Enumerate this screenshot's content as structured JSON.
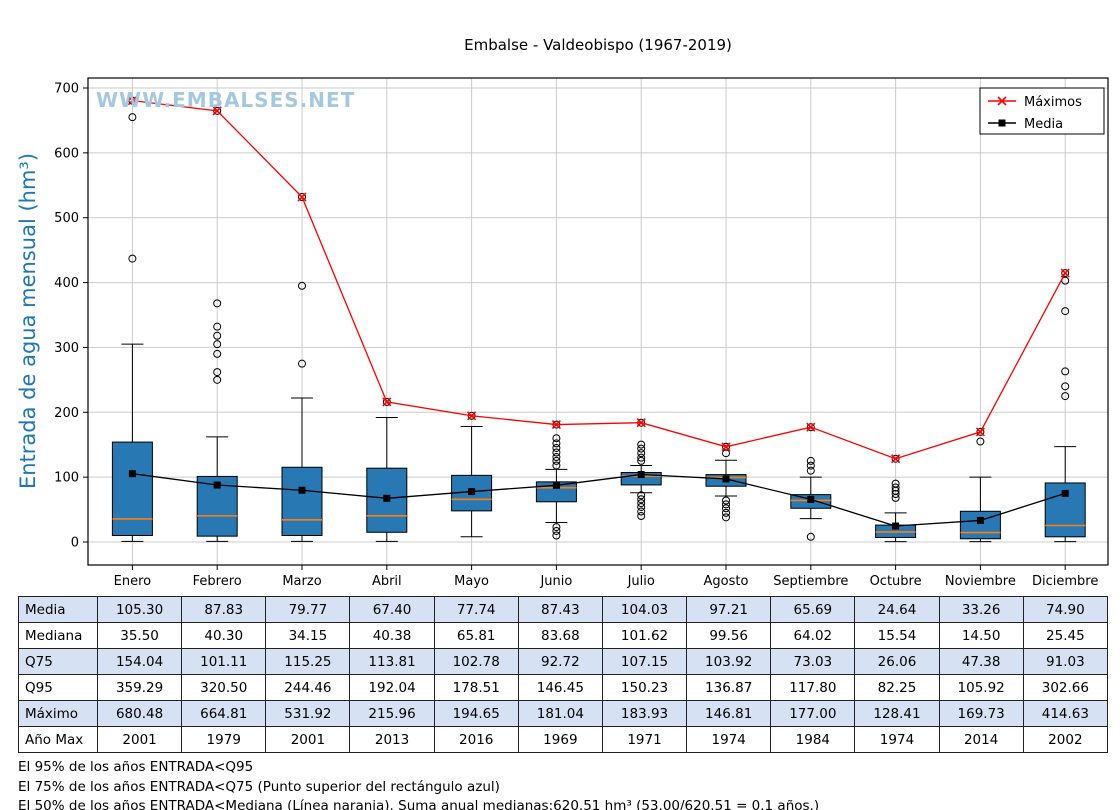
{
  "title": "Embalse - Valdeobispo (1967-2019)",
  "watermark": "WWW.EMBALSES.NET",
  "ylabel": "Entrada de agua mensual (hm³)",
  "colors": {
    "box": "#2878b4",
    "median": "#ff7f0e",
    "max_line": "#ff0000",
    "media_line": "#000000",
    "grid": "#cccccc",
    "axis_label": "#1f77b4",
    "watermark": "#a5c8e1",
    "table_shade": "#d6e2f3"
  },
  "chart_data": {
    "type": "boxplot+lines",
    "categories": [
      "Enero",
      "Febrero",
      "Marzo",
      "Abril",
      "Mayo",
      "Junio",
      "Julio",
      "Agosto",
      "Septiembre",
      "Octubre",
      "Noviembre",
      "Diciembre"
    ],
    "ylim": [
      0,
      700
    ],
    "yticks": [
      0,
      100,
      200,
      300,
      400,
      500,
      600,
      700
    ],
    "legend_position": "top-right",
    "series": [
      {
        "name": "Máximos",
        "color": "#ff0000",
        "marker": "x",
        "values": [
          680.48,
          664.81,
          531.92,
          215.96,
          194.65,
          181.04,
          183.93,
          146.81,
          177.0,
          128.41,
          169.73,
          414.63
        ]
      },
      {
        "name": "Media",
        "color": "#000000",
        "marker": "square",
        "values": [
          105.3,
          87.83,
          79.77,
          67.4,
          77.74,
          87.43,
          104.03,
          97.21,
          65.69,
          24.64,
          33.26,
          74.9
        ]
      }
    ],
    "boxes": [
      {
        "q1": 10,
        "median": 35.5,
        "q3": 154.04,
        "whislo": 1,
        "whishi": 305,
        "outliers": [
          437,
          655,
          680.48
        ]
      },
      {
        "q1": 9,
        "median": 40.3,
        "q3": 101.11,
        "whislo": 1,
        "whishi": 162,
        "outliers": [
          250,
          262,
          290,
          305,
          318,
          332,
          368,
          664.81
        ]
      },
      {
        "q1": 10,
        "median": 34.15,
        "q3": 115.25,
        "whislo": 1,
        "whishi": 222,
        "outliers": [
          275,
          395,
          531.92
        ]
      },
      {
        "q1": 15,
        "median": 40.38,
        "q3": 113.81,
        "whislo": 1,
        "whishi": 192,
        "outliers": [
          215.96
        ]
      },
      {
        "q1": 48,
        "median": 65.81,
        "q3": 102.78,
        "whislo": 8,
        "whishi": 178,
        "outliers": [
          194.65
        ]
      },
      {
        "q1": 62,
        "median": 83.68,
        "q3": 92.72,
        "whislo": 30,
        "whishi": 112,
        "outliers": [
          10,
          17,
          23,
          118,
          125,
          131,
          138,
          145,
          152,
          160,
          181.04
        ]
      },
      {
        "q1": 88,
        "median": 101.62,
        "q3": 107.15,
        "whislo": 76,
        "whishi": 118,
        "outliers": [
          40,
          47,
          54,
          60,
          66,
          72,
          125,
          130,
          137,
          144,
          150.23,
          183.93
        ]
      },
      {
        "q1": 86,
        "median": 99.56,
        "q3": 103.92,
        "whislo": 71,
        "whishi": 126,
        "outliers": [
          38,
          45,
          52,
          58,
          64,
          136.87,
          146.81
        ]
      },
      {
        "q1": 52,
        "median": 64.02,
        "q3": 73.03,
        "whislo": 36,
        "whishi": 100,
        "outliers": [
          8,
          110,
          117.8,
          125,
          177.0
        ]
      },
      {
        "q1": 7,
        "median": 15.54,
        "q3": 26.06,
        "whislo": 0.5,
        "whishi": 45,
        "outliers": [
          68,
          74,
          79,
          84,
          90,
          128.41
        ]
      },
      {
        "q1": 5,
        "median": 14.5,
        "q3": 47.38,
        "whislo": 0.5,
        "whishi": 100,
        "outliers": [
          155,
          169.73
        ]
      },
      {
        "q1": 8,
        "median": 25.45,
        "q3": 91.03,
        "whislo": 0.5,
        "whishi": 147,
        "outliers": [
          225,
          240,
          263,
          356,
          403,
          414.63
        ]
      }
    ]
  },
  "table": {
    "row_headers": [
      "Media",
      "Mediana",
      "Q75",
      "Q95",
      "Máximo",
      "Año Max"
    ],
    "columns": [
      "Enero",
      "Febrero",
      "Marzo",
      "Abril",
      "Mayo",
      "Junio",
      "Julio",
      "Agosto",
      "Septiembre",
      "Octubre",
      "Noviembre",
      "Diciembre"
    ],
    "rows": [
      [
        "105.30",
        "87.83",
        "79.77",
        "67.40",
        "77.74",
        "87.43",
        "104.03",
        "97.21",
        "65.69",
        "24.64",
        "33.26",
        "74.90"
      ],
      [
        "35.50",
        "40.30",
        "34.15",
        "40.38",
        "65.81",
        "83.68",
        "101.62",
        "99.56",
        "64.02",
        "15.54",
        "14.50",
        "25.45"
      ],
      [
        "154.04",
        "101.11",
        "115.25",
        "113.81",
        "102.78",
        "92.72",
        "107.15",
        "103.92",
        "73.03",
        "26.06",
        "47.38",
        "91.03"
      ],
      [
        "359.29",
        "320.50",
        "244.46",
        "192.04",
        "178.51",
        "146.45",
        "150.23",
        "136.87",
        "117.80",
        "82.25",
        "105.92",
        "302.66"
      ],
      [
        "680.48",
        "664.81",
        "531.92",
        "215.96",
        "194.65",
        "181.04",
        "183.93",
        "146.81",
        "177.00",
        "128.41",
        "169.73",
        "414.63"
      ],
      [
        "2001",
        "1979",
        "2001",
        "2013",
        "2016",
        "1969",
        "1971",
        "1974",
        "1984",
        "1974",
        "2014",
        "2002"
      ]
    ]
  },
  "footer": [
    "El 95% de los años ENTRADA<Q95",
    "El 75% de los años ENTRADA<Q75 (Punto superior del rectángulo azul)",
    "El 50% de los años ENTRADA<Mediana (Línea naranja). Suma anual medianas:620.51 hm³ (53.00/620.51 = 0.1 años.)"
  ]
}
